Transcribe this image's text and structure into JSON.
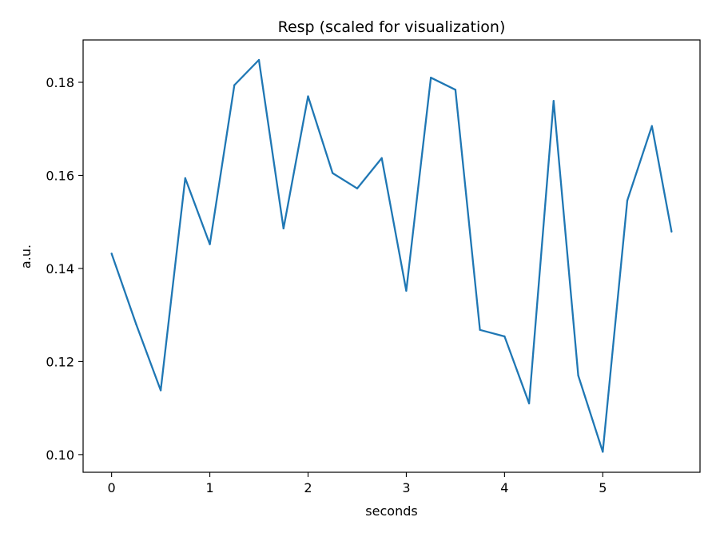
{
  "chart_data": {
    "type": "line",
    "title": "Resp (scaled for visualization)",
    "xlabel": "seconds",
    "ylabel": "a.u.",
    "xlim": [
      -0.29,
      5.99
    ],
    "ylim": [
      0.0962,
      0.1891
    ],
    "xticks": [
      0,
      1,
      2,
      3,
      4,
      5
    ],
    "xtick_labels": [
      "0",
      "1",
      "2",
      "3",
      "4",
      "5"
    ],
    "yticks": [
      0.1,
      0.12,
      0.14,
      0.16,
      0.18
    ],
    "ytick_labels": [
      "0.10",
      "0.12",
      "0.14",
      "0.16",
      "0.18"
    ],
    "grid": false,
    "series": [
      {
        "color": "#1f77b4",
        "x": [
          0,
          0.25,
          0.5,
          0.75,
          1.0,
          1.25,
          1.5,
          1.75,
          2.0,
          2.25,
          2.5,
          2.75,
          3.0,
          3.25,
          3.5,
          3.75,
          4.0,
          4.25,
          4.5,
          4.75,
          5.0,
          5.25,
          5.5,
          5.7
        ],
        "values": [
          0.1432,
          0.128,
          0.1138,
          0.1594,
          0.1452,
          0.1794,
          0.1848,
          0.1486,
          0.177,
          0.1605,
          0.1572,
          0.1637,
          0.1352,
          0.181,
          0.1784,
          0.1268,
          0.1254,
          0.111,
          0.176,
          0.117,
          0.1006,
          0.1546,
          0.1706,
          0.1479
        ]
      }
    ]
  }
}
